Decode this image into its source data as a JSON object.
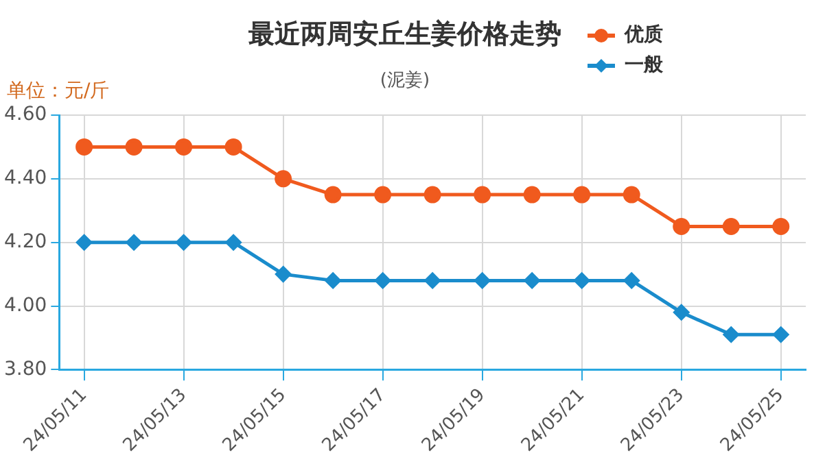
{
  "chart_data": {
    "type": "line",
    "title": "最近两周安丘生姜价格走势",
    "subtitle": "(泥姜)",
    "ylabel": "单位：元/斤",
    "categories": [
      "24/05/11",
      null,
      "24/05/13",
      null,
      "24/05/15",
      null,
      "24/05/17",
      null,
      "24/05/19",
      null,
      "24/05/21",
      null,
      "24/05/23",
      null,
      "24/05/25"
    ],
    "series": [
      {
        "name": "优质",
        "color": "#f05a1e",
        "marker": "circle",
        "values": [
          4.5,
          4.5,
          4.5,
          4.5,
          4.4,
          4.35,
          4.35,
          4.35,
          4.35,
          4.35,
          4.35,
          4.35,
          4.25,
          4.25,
          4.25
        ]
      },
      {
        "name": "一般",
        "color": "#1a8ccc",
        "marker": "diamond",
        "values": [
          4.2,
          4.2,
          4.2,
          4.2,
          4.1,
          4.08,
          4.08,
          4.08,
          4.08,
          4.08,
          4.08,
          4.08,
          3.98,
          3.91,
          3.91
        ]
      }
    ],
    "ylim": [
      3.8,
      4.6
    ],
    "yticks": [
      {
        "value": 3.8,
        "label": "3.80"
      },
      {
        "value": 4.0,
        "label": "4.00"
      },
      {
        "value": 4.2,
        "label": "4.20"
      },
      {
        "value": 4.4,
        "label": "4.40"
      },
      {
        "value": 4.6,
        "label": "4.60"
      }
    ],
    "grid": true,
    "legend": "top right"
  }
}
